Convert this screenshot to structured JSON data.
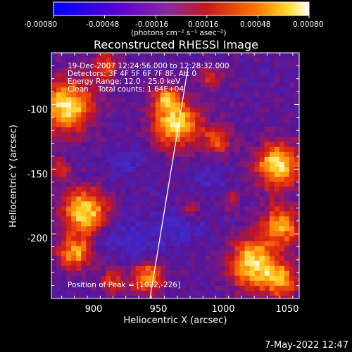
{
  "colorbar": {
    "tick_labels": [
      "-0.00080",
      "-0.00048",
      "-0.00016",
      "0.00016",
      "0.00048",
      "0.00080"
    ],
    "units": "(photons cm⁻² s⁻¹ asec⁻²)",
    "colors": [
      "#0000ff",
      "#5a00d0",
      "#8a2aa0",
      "#c21a1a",
      "#ff7a00",
      "#ffffff"
    ]
  },
  "title": "Reconstructed RHESSI Image",
  "info": {
    "line1": "19-Dec-2007 12:24:56.000 to 12:28:32.000",
    "line2": "Detectors: 3F 4F 5F 6F 7F 8F, Att 0",
    "line3": "Energy Range: 12.0 - 25.0 keV",
    "line4": "Clean    Total counts: 1.64E+04"
  },
  "peak": "Position of Peak = [1022,-226]",
  "x_axis": {
    "label": "Heliocentric X (arcsec)",
    "ticks": [
      "900",
      "950",
      "1000",
      "1050"
    ],
    "range": [
      867,
      1060
    ]
  },
  "y_axis": {
    "label": "Heliocentric Y (arcsec)",
    "ticks": [
      "-100",
      "-150",
      "-200"
    ],
    "range": [
      -250,
      -60
    ]
  },
  "footer": {
    "timestamp": "7-May-2022 12:47"
  }
}
